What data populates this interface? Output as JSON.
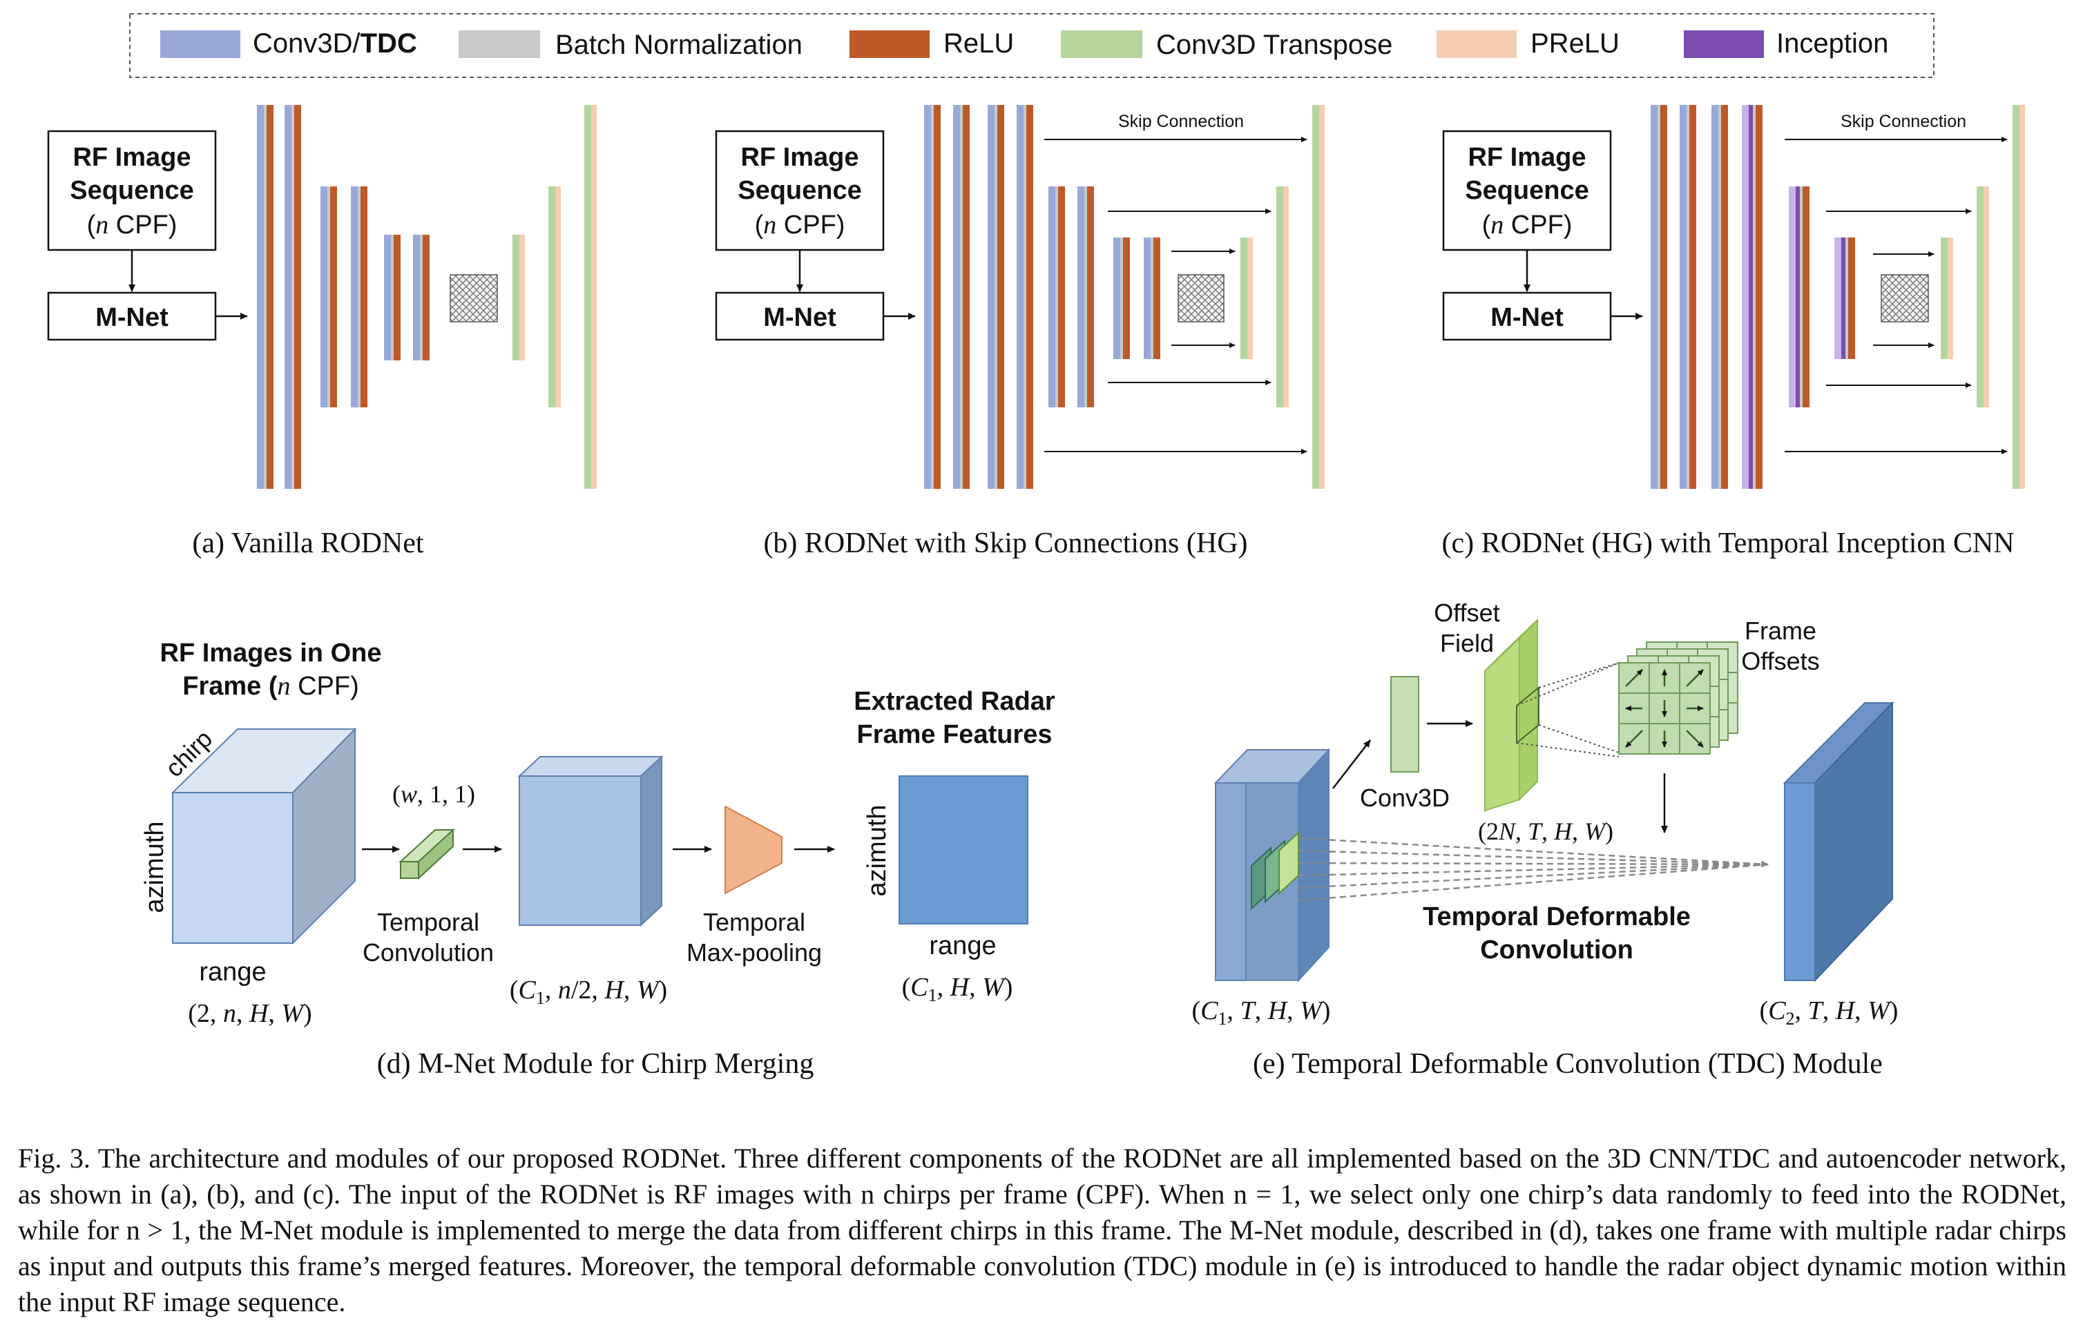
{
  "legend": {
    "items": [
      {
        "id": "conv3d",
        "label_a": "Conv3D/",
        "label_b": "TDC",
        "color": "#98A9D9"
      },
      {
        "id": "bn",
        "label": "Batch Normalization",
        "color": "#C8C8C8"
      },
      {
        "id": "relu",
        "label": "ReLU",
        "color": "#BE5A28"
      },
      {
        "id": "convt",
        "label": "Conv3D Transpose",
        "color": "#B5D59C"
      },
      {
        "id": "prelu",
        "label": "PReLU",
        "color": "#F6CDB0"
      },
      {
        "id": "inception",
        "label": "Inception",
        "color": "#7A4DAE"
      }
    ]
  },
  "input_box": {
    "line1": "RF Image",
    "line2": "Sequence",
    "line3_italic": "n",
    "line3_rest": " CPF)",
    "line3_open": "(",
    "mnet": "M-Net"
  },
  "panels": {
    "a_caption": "(a) Vanilla RODNet",
    "b_caption": "(b) RODNet with Skip Connections (HG)",
    "c_caption": "(c) RODNet (HG) with Temporal Inception CNN",
    "skip_label": "Skip Connection"
  },
  "mnet_panel": {
    "title_line1": "RF Images in One",
    "title_line2_a": "Frame (",
    "title_line2_n": "n",
    "title_line2_b": " CPF)",
    "chirp": "chirp",
    "azimuth": "azimuth",
    "range": "range",
    "input_dims": "(2, n, H, W)",
    "kernel_dims": "(w, 1, 1)",
    "temporal_conv_1": "Temporal",
    "temporal_conv_2": "Convolution",
    "mid_dims": "(C1, n/2, H, W)",
    "pool_1": "Temporal",
    "pool_2": "Max-pooling",
    "out_title_1": "Extracted Radar",
    "out_title_2": "Frame Features",
    "out_azimuth": "azimuth",
    "out_range": "range",
    "out_dims": "(C1, H, W)",
    "caption": "(d) M-Net Module for Chirp Merging"
  },
  "tdc_panel": {
    "offset_1": "Offset",
    "offset_2": "Field",
    "frame_1": "Frame",
    "frame_2": "Offsets",
    "conv3d": "Conv3D",
    "offset_dims": "(2N, T, H, W)",
    "tdc_1": "Temporal Deformable",
    "tdc_2": "Convolution",
    "in_dims": "(C1, T, H, W)",
    "out_dims": "(C2, T, H, W)",
    "caption": "(e) Temporal Deformable Convolution (TDC) Module"
  },
  "caption_text": "Fig. 3.  The architecture and modules of our proposed RODNet. Three different components of the RODNet are all implemented based on the 3D CNN/TDC and autoencoder network, as shown in (a), (b), and (c). The input of the RODNet is RF images with n chirps per frame (CPF). When n = 1, we select only one chirp’s data randomly to feed into the RODNet, while for n > 1, the M-Net module is implemented to merge the data from different chirps in this frame. The M-Net module, described in (d), takes one frame with multiple radar chirps as input and outputs this frame’s merged features. Moreover, the temporal deformable convolution (TDC) module in (e) is introduced to handle the radar object dynamic motion within the input RF image sequence."
}
